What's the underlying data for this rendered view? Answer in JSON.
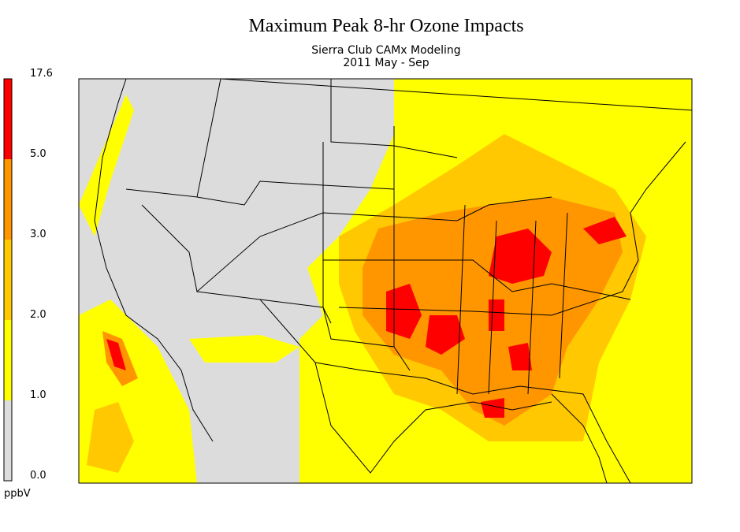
{
  "header": {
    "title": "Maximum Peak 8-hr Ozone Impacts",
    "subtitle": "Sierra Club CAMx Modeling",
    "period": "2011 May - Sep"
  },
  "colorbar": {
    "levels": [
      {
        "value": 0,
        "label": "0.0"
      },
      {
        "value": 1,
        "label": "1.0"
      },
      {
        "value": 2,
        "label": "2.0"
      },
      {
        "value": 3,
        "label": "3.0"
      },
      {
        "value": 5,
        "label": "5.0"
      },
      17.6
    ],
    "colors": [
      "#dcdcdc",
      "#ffff00",
      "#ffc800",
      "#ff9600",
      "#ff0000"
    ],
    "unit": "ppbV"
  }
}
